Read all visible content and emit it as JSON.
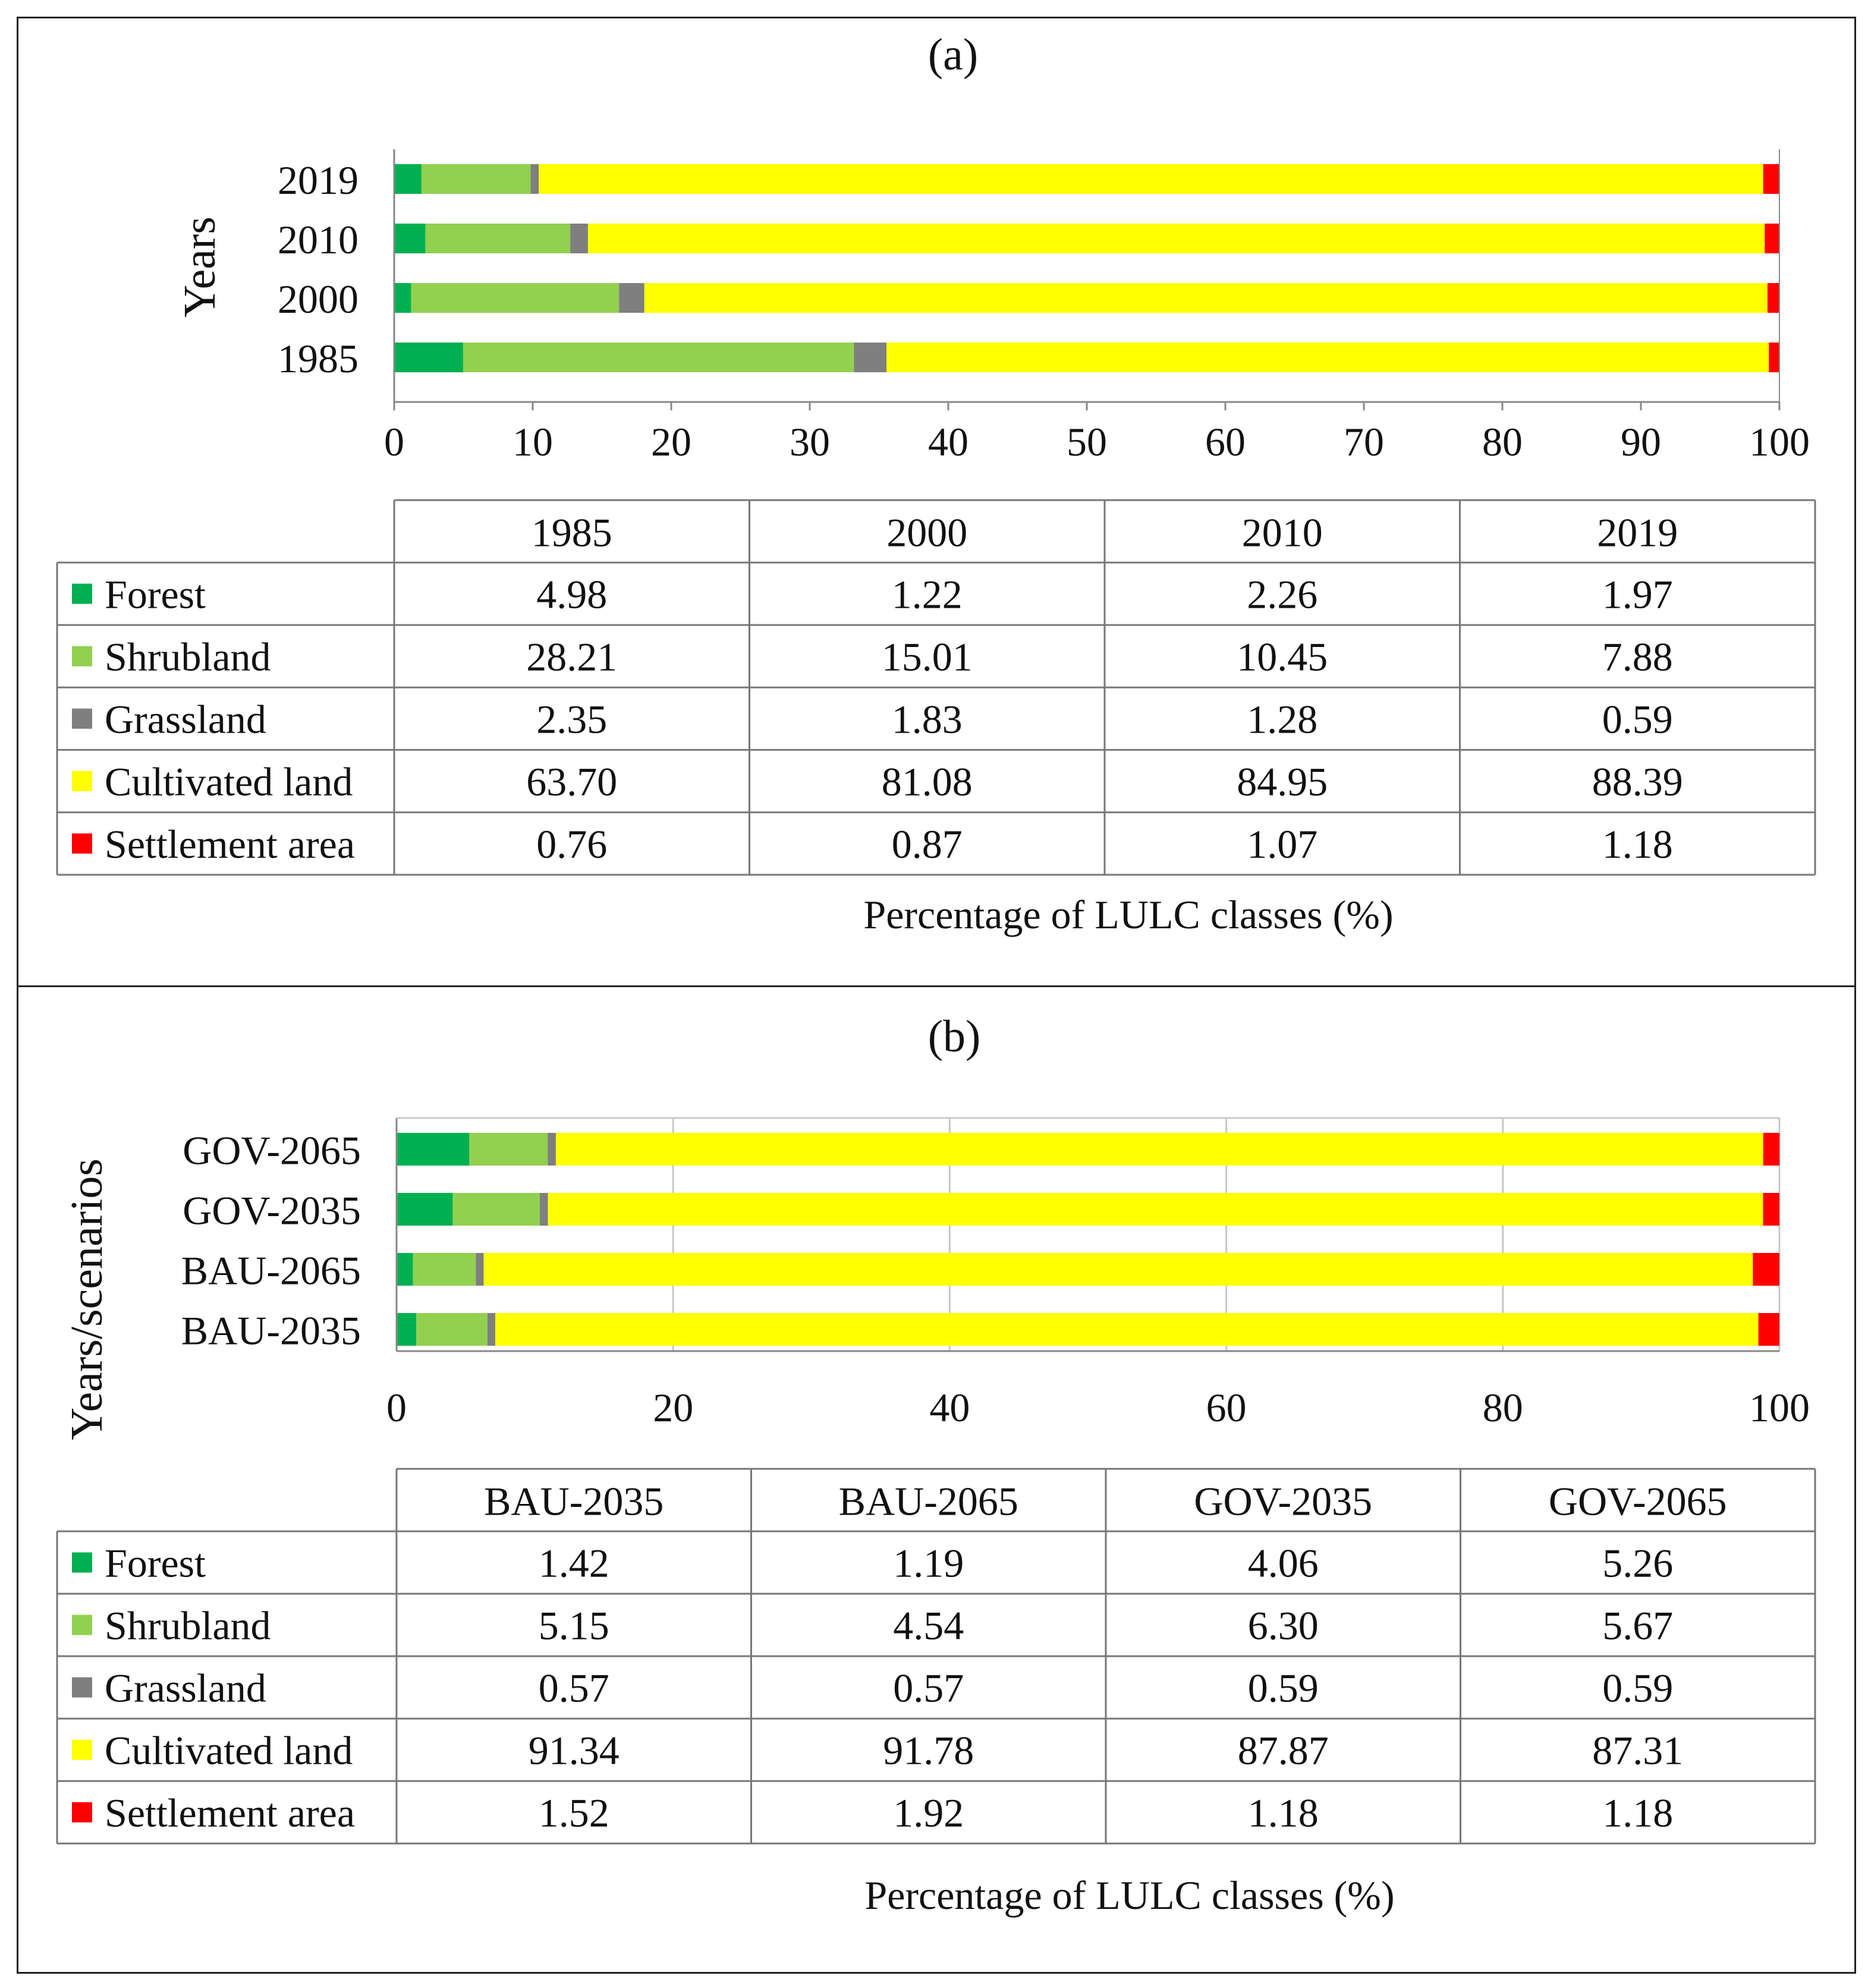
{
  "colors": {
    "Forest": "#00b050",
    "Shrubland": "#92d050",
    "Grassland": "#7f7f7f",
    "Cultivated land": "#ffff00",
    "Settlement area": "#ff0000"
  },
  "chart_data": [
    {
      "type": "bar",
      "orientation": "horizontal",
      "stacked": true,
      "title": "(a)",
      "ylabel": "Years",
      "xlabel": "Percentage of LULC classes (%)",
      "xlim": [
        0,
        100
      ],
      "xticks": [
        0,
        10,
        20,
        30,
        40,
        50,
        60,
        70,
        80,
        90,
        100
      ],
      "vertical_gridlines": false,
      "categories": [
        "1985",
        "2000",
        "2010",
        "2019"
      ],
      "series": [
        {
          "name": "Forest",
          "values": [
            4.98,
            1.22,
            2.26,
            1.97
          ]
        },
        {
          "name": "Shrubland",
          "values": [
            28.21,
            15.01,
            10.45,
            7.88
          ]
        },
        {
          "name": "Grassland",
          "values": [
            2.35,
            1.83,
            1.28,
            0.59
          ]
        },
        {
          "name": "Cultivated land",
          "values": [
            63.7,
            81.08,
            84.95,
            88.39
          ]
        },
        {
          "name": "Settlement area",
          "values": [
            0.76,
            0.87,
            1.07,
            1.18
          ]
        }
      ],
      "table": {
        "columns": [
          "1985",
          "2000",
          "2010",
          "2019"
        ],
        "rows": [
          {
            "label": "Forest",
            "cells": [
              "4.98",
              "1.22",
              "2.26",
              "1.97"
            ]
          },
          {
            "label": "Shrubland",
            "cells": [
              "28.21",
              "15.01",
              "10.45",
              "7.88"
            ]
          },
          {
            "label": "Grassland",
            "cells": [
              "2.35",
              "1.83",
              "1.28",
              "0.59"
            ]
          },
          {
            "label": "Cultivated land",
            "cells": [
              "63.70",
              "81.08",
              "84.95",
              "88.39"
            ]
          },
          {
            "label": "Settlement area",
            "cells": [
              "0.76",
              "0.87",
              "1.07",
              "1.18"
            ]
          }
        ]
      }
    },
    {
      "type": "bar",
      "orientation": "horizontal",
      "stacked": true,
      "title": "(b)",
      "ylabel": "Years/scenarios",
      "xlabel": "Percentage of LULC classes (%)",
      "xlim": [
        0,
        100
      ],
      "xticks": [
        0,
        20,
        40,
        60,
        80,
        100
      ],
      "vertical_gridlines": true,
      "categories": [
        "BAU-2035",
        "BAU-2065",
        "GOV-2035",
        "GOV-2065"
      ],
      "series": [
        {
          "name": "Forest",
          "values": [
            1.42,
            1.19,
            4.06,
            5.26
          ]
        },
        {
          "name": "Shrubland",
          "values": [
            5.15,
            4.54,
            6.3,
            5.67
          ]
        },
        {
          "name": "Grassland",
          "values": [
            0.57,
            0.57,
            0.59,
            0.59
          ]
        },
        {
          "name": "Cultivated land",
          "values": [
            91.34,
            91.78,
            87.87,
            87.31
          ]
        },
        {
          "name": "Settlement area",
          "values": [
            1.52,
            1.92,
            1.18,
            1.18
          ]
        }
      ],
      "table": {
        "columns": [
          "BAU-2035",
          "BAU-2065",
          "GOV-2035",
          "GOV-2065"
        ],
        "rows": [
          {
            "label": "Forest",
            "cells": [
              "1.42",
              "1.19",
              "4.06",
              "5.26"
            ]
          },
          {
            "label": "Shrubland",
            "cells": [
              "5.15",
              "4.54",
              "6.30",
              "5.67"
            ]
          },
          {
            "label": "Grassland",
            "cells": [
              "0.57",
              "0.57",
              "0.59",
              "0.59"
            ]
          },
          {
            "label": "Cultivated land",
            "cells": [
              "91.34",
              "91.78",
              "87.87",
              "87.31"
            ]
          },
          {
            "label": "Settlement area",
            "cells": [
              "1.52",
              "1.92",
              "1.18",
              "1.18"
            ]
          }
        ]
      }
    }
  ]
}
